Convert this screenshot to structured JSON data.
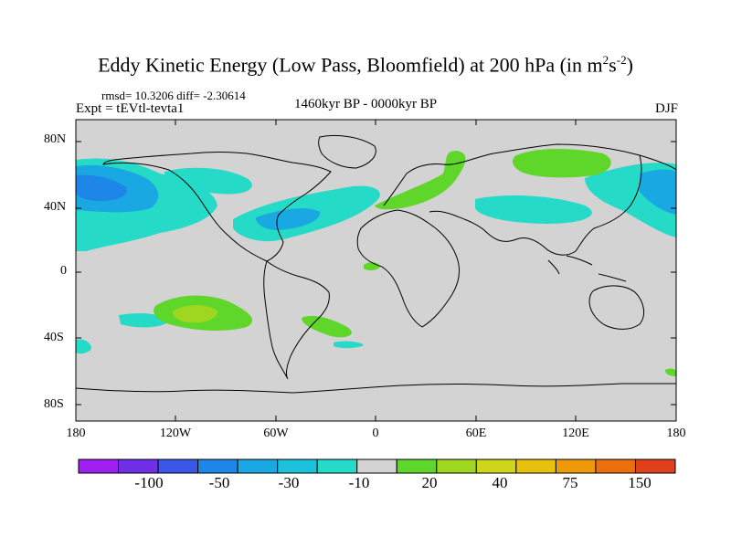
{
  "title": {
    "main": "Eddy Kinetic Energy (Low Pass, Bloomfield) at 200 hPa (in m",
    "sup1": "2",
    "mid": "s",
    "sup2": "-2",
    "end": ")"
  },
  "stats": "rmsd= 10.3206  diff= -2.30614",
  "experiment": "Expt = tEVtl-tevta1",
  "period": "1460kyr BP - 0000kyr BP",
  "season": "DJF",
  "map": {
    "y_ticks": [
      "80N",
      "40N",
      "0",
      "40S",
      "80S"
    ],
    "x_ticks": [
      "180",
      "120W",
      "60W",
      "0",
      "60E",
      "120E",
      "180"
    ],
    "background_color": "#d3d3d3"
  },
  "colorbar": {
    "colors": [
      "#9f1ef0",
      "#6e2fe6",
      "#3b57e8",
      "#1e86e8",
      "#19a8e2",
      "#1cc2dc",
      "#26dac8",
      "#d3d3d3",
      "#5fd62a",
      "#9fd620",
      "#cfd41c",
      "#e8c10e",
      "#ec9a0a",
      "#eb6f0a",
      "#e0401c"
    ],
    "labels": [
      "-100",
      "-50",
      "-30",
      "-10",
      "20",
      "40",
      "75",
      "150"
    ]
  }
}
